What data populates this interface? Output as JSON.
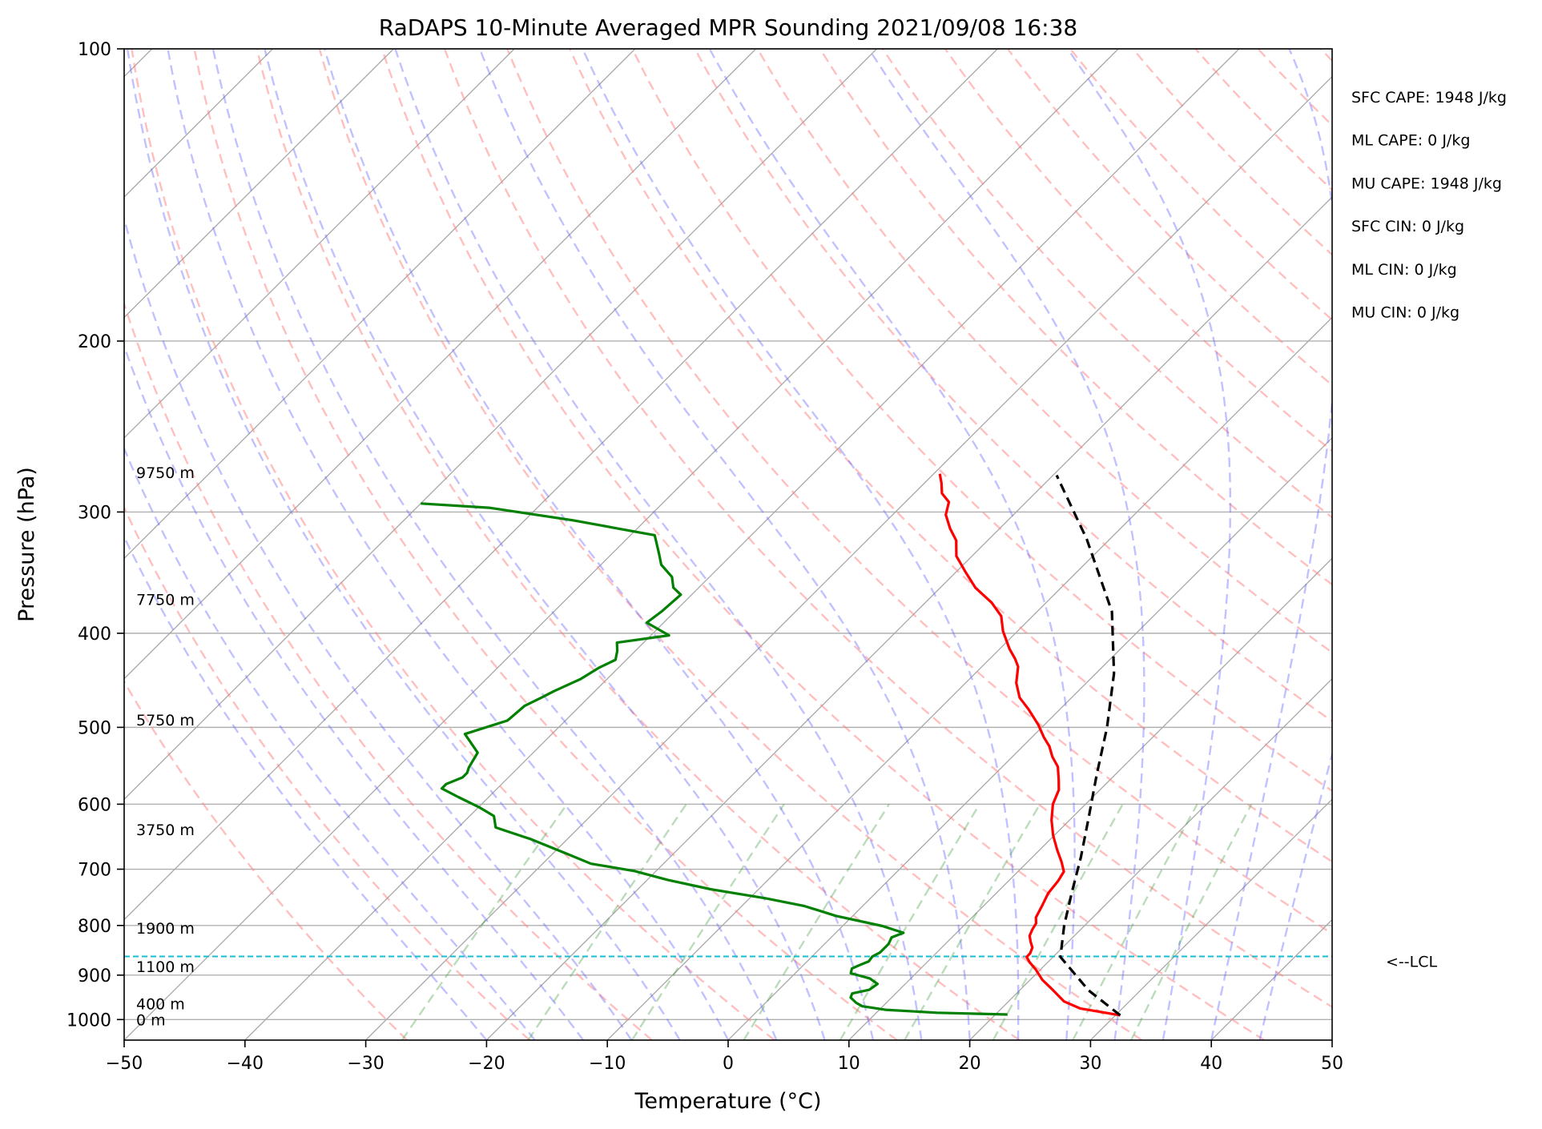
{
  "chart_data": {
    "type": "line",
    "title": "RaDAPS 10-Minute Averaged MPR Sounding 2021/09/08 16:38",
    "xlabel": "Temperature (°C)",
    "ylabel": "Pressure (hPa)",
    "xlim": [
      -50,
      50
    ],
    "ylim": [
      1050,
      100
    ],
    "yscale": "log",
    "skew": "skew-T",
    "grid": true,
    "xticks": [
      -50,
      -40,
      -30,
      -20,
      -10,
      0,
      10,
      20,
      30,
      40,
      50
    ],
    "xtick_labels": [
      "−50",
      "−40",
      "−30",
      "−20",
      "−10",
      "0",
      "10",
      "20",
      "30",
      "40",
      "50"
    ],
    "yticks": [
      100,
      200,
      300,
      400,
      500,
      600,
      700,
      800,
      900,
      1000
    ],
    "ytick_labels": [
      "100",
      "200",
      "300",
      "400",
      "500",
      "600",
      "700",
      "800",
      "900",
      "1000"
    ],
    "height_labels": [
      {
        "label": "9750 m",
        "p": 273
      },
      {
        "label": "7750 m",
        "p": 369
      },
      {
        "label": "5750 m",
        "p": 491
      },
      {
        "label": "3750 m",
        "p": 637
      },
      {
        "label": "1900 m",
        "p": 805
      },
      {
        "label": "1100 m",
        "p": 882
      },
      {
        "label": "400 m",
        "p": 963
      },
      {
        "label": "0 m",
        "p": 1000
      }
    ],
    "lcl": {
      "p": 861,
      "label": "<--LCL",
      "color": "#17becf"
    },
    "indices": [
      "SFC CAPE: 1948 J/kg",
      "ML CAPE: 0 J/kg",
      "MU CAPE: 1948 J/kg",
      "SFC CIN: 0 J/kg",
      "ML CIN: 0 J/kg",
      "MU CIN: 0 J/kg"
    ],
    "series": [
      {
        "id": "temperature",
        "color": "#ff0000",
        "style": "solid",
        "points": [
          [
            30.4,
            990
          ],
          [
            26.5,
            974
          ],
          [
            24.6,
            958
          ],
          [
            22.7,
            932
          ],
          [
            21.0,
            910
          ],
          [
            19.6,
            888
          ],
          [
            18.5,
            873
          ],
          [
            17.8,
            862
          ],
          [
            17.8,
            855
          ],
          [
            17.5,
            843
          ],
          [
            16.9,
            832
          ],
          [
            16.3,
            820
          ],
          [
            16.0,
            808
          ],
          [
            15.8,
            796
          ],
          [
            15.3,
            785
          ],
          [
            14.8,
            762
          ],
          [
            14.3,
            741
          ],
          [
            14.1,
            720
          ],
          [
            13.8,
            704
          ],
          [
            12.8,
            688
          ],
          [
            11.4,
            668
          ],
          [
            9.9,
            646
          ],
          [
            8.5,
            623
          ],
          [
            7.3,
            600
          ],
          [
            6.6,
            580
          ],
          [
            5.8,
            567
          ],
          [
            4.6,
            549
          ],
          [
            3.3,
            536
          ],
          [
            2.2,
            523
          ],
          [
            1.0,
            512
          ],
          [
            -0.5,
            497
          ],
          [
            -2.6,
            479
          ],
          [
            -4.3,
            466
          ],
          [
            -5.8,
            450
          ],
          [
            -7.0,
            433
          ],
          [
            -7.9,
            425
          ],
          [
            -9.2,
            415
          ],
          [
            -11.2,
            398
          ],
          [
            -12.6,
            384
          ],
          [
            -14.5,
            372
          ],
          [
            -17.1,
            359
          ],
          [
            -19.2,
            346
          ],
          [
            -21.3,
            333
          ],
          [
            -22.6,
            321
          ],
          [
            -24.1,
            312
          ],
          [
            -25.6,
            302
          ],
          [
            -26.4,
            293
          ],
          [
            -27.7,
            287
          ],
          [
            -28.6,
            280
          ],
          [
            -29.5,
            274
          ]
        ]
      },
      {
        "id": "dewpoint",
        "color": "#008000",
        "style": "solid",
        "points": [
          [
            21.0,
            988
          ],
          [
            15.0,
            984
          ],
          [
            10.5,
            977
          ],
          [
            8.3,
            969
          ],
          [
            7.5,
            961
          ],
          [
            6.6,
            949
          ],
          [
            6.4,
            940
          ],
          [
            7.5,
            932
          ],
          [
            7.7,
            919
          ],
          [
            6.6,
            907
          ],
          [
            4.6,
            896
          ],
          [
            4.3,
            886
          ],
          [
            4.7,
            878
          ],
          [
            5.1,
            871
          ],
          [
            5.0,
            861
          ],
          [
            5.3,
            853
          ],
          [
            5.3,
            846
          ],
          [
            5.3,
            836
          ],
          [
            5.0,
            823
          ],
          [
            5.6,
            814
          ],
          [
            3.3,
            801
          ],
          [
            -1.4,
            782
          ],
          [
            -4.8,
            764
          ],
          [
            -8.7,
            750
          ],
          [
            -14.0,
            734
          ],
          [
            -18.3,
            718
          ],
          [
            -21.8,
            703
          ],
          [
            -26.0,
            691
          ],
          [
            -28.8,
            675
          ],
          [
            -33.0,
            652
          ],
          [
            -36.9,
            634
          ],
          [
            -38.0,
            617
          ],
          [
            -40.0,
            604
          ],
          [
            -42.5,
            590
          ],
          [
            -44.6,
            578
          ],
          [
            -44.6,
            572
          ],
          [
            -43.8,
            563
          ],
          [
            -43.8,
            557
          ],
          [
            -44.1,
            550
          ],
          [
            -44.6,
            531
          ],
          [
            -47.2,
            508
          ],
          [
            -44.8,
            492
          ],
          [
            -44.6,
            475
          ],
          [
            -43.9,
            466
          ],
          [
            -43.4,
            459
          ],
          [
            -42.2,
            446
          ],
          [
            -41.6,
            434
          ],
          [
            -40.9,
            426
          ],
          [
            -41.5,
            417
          ],
          [
            -42.2,
            409
          ],
          [
            -38.5,
            402
          ],
          [
            -41.4,
            390
          ],
          [
            -41.1,
            380
          ],
          [
            -40.9,
            365
          ],
          [
            -42.1,
            359
          ],
          [
            -43.1,
            350
          ],
          [
            -45.0,
            340
          ],
          [
            -46.0,
            332
          ],
          [
            -48.0,
            317
          ],
          [
            -56.0,
            306
          ],
          [
            -64.0,
            297
          ],
          [
            -70.0,
            294
          ]
        ]
      },
      {
        "id": "parcel",
        "color": "#000000",
        "style": "dashed",
        "points": [
          [
            30.4,
            990
          ],
          [
            25.7,
            933
          ],
          [
            20.6,
            862
          ],
          [
            18.3,
            800
          ],
          [
            16.2,
            740
          ],
          [
            14.0,
            680
          ],
          [
            11.4,
            620
          ],
          [
            8.5,
            560
          ],
          [
            5.4,
            500
          ],
          [
            1.5,
            440
          ],
          [
            -3.8,
            380
          ],
          [
            -11.9,
            320
          ],
          [
            -19.7,
            275
          ]
        ]
      }
    ]
  }
}
